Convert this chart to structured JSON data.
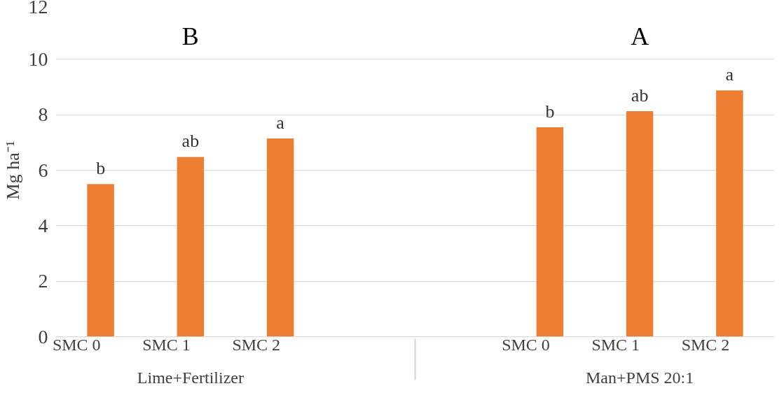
{
  "chart_data": {
    "type": "bar",
    "categories": [
      "SMC 0",
      "SMC 1",
      "SMC 2",
      "SMC 0",
      "SMC 1",
      "SMC 2"
    ],
    "values": [
      5.5,
      6.48,
      7.15,
      7.55,
      8.13,
      8.88
    ],
    "value_labels": [
      "b",
      "ab",
      "a",
      "b",
      "ab",
      "a"
    ],
    "color": "#ed7d31",
    "ylabel": "Mg ha⁻¹",
    "ylim": [
      0,
      12
    ],
    "yticks": [
      0,
      2,
      4,
      6,
      8,
      10,
      12
    ],
    "grid": "y",
    "annotations": [
      "B",
      "A",
      "Lime+Fertilizer",
      "Man+PMS 20:1"
    ]
  }
}
